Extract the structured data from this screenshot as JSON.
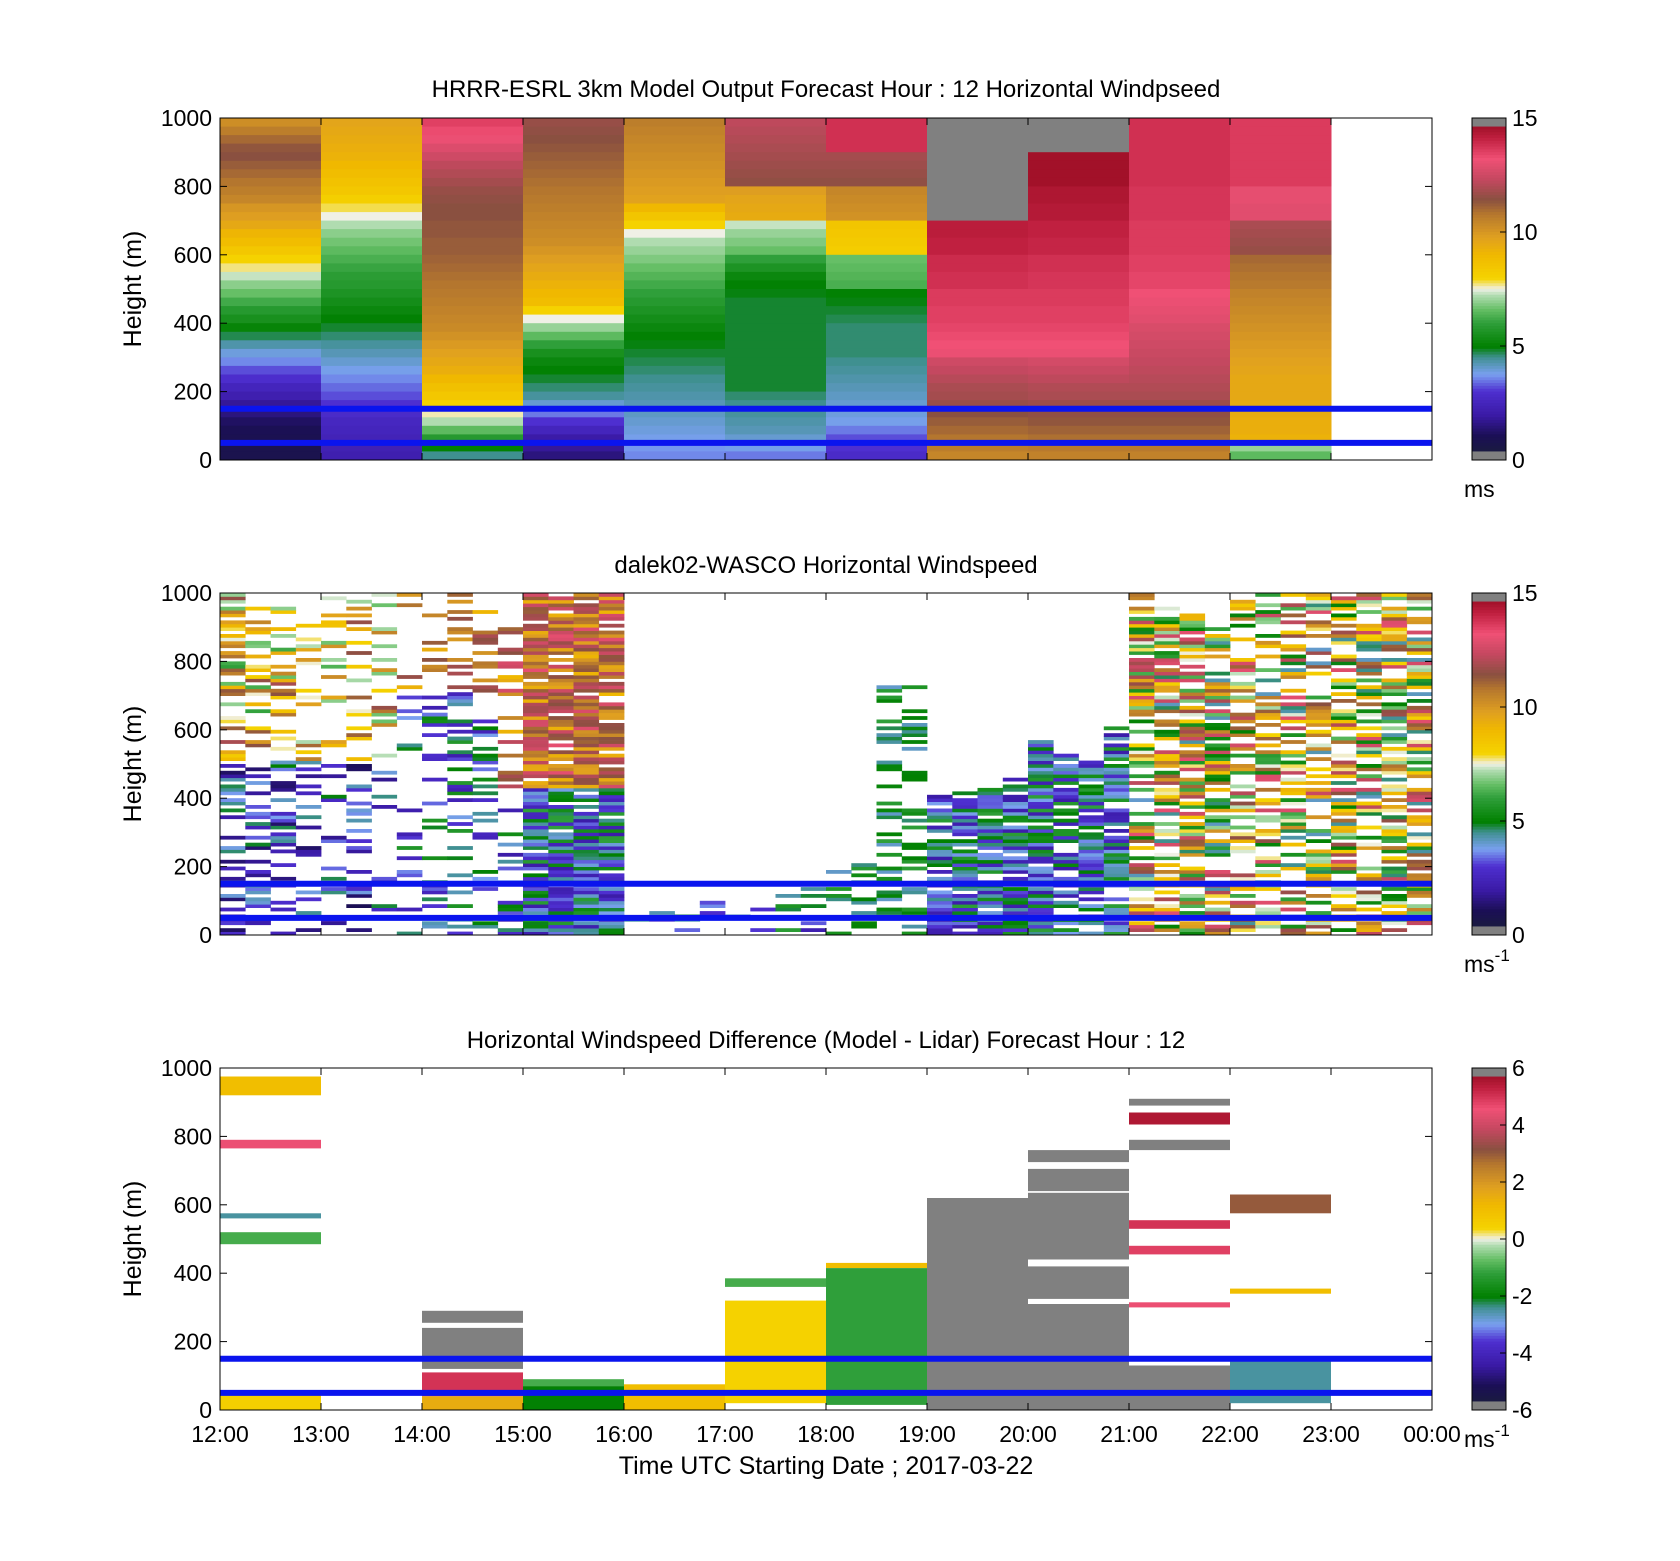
{
  "chart_data": [
    {
      "type": "heatmap",
      "title": "HRRR-ESRL 3km Model Output   Forecast Hour : 12 Horizontal Windpseed",
      "ylabel": "Height (m)",
      "xlabel": "",
      "x_ticks": [
        "",
        "",
        "",
        "",
        "",
        "",
        "",
        "",
        "",
        "",
        "",
        "",
        ""
      ],
      "y_ticks": [
        "0",
        "200",
        "400",
        "600",
        "800",
        "1000"
      ],
      "ylim": [
        0,
        1000
      ],
      "colorbar": {
        "ticks": [
          "0",
          "5",
          "10",
          "15"
        ],
        "range": [
          0,
          15
        ],
        "unit_base": "ms",
        "unit_sup": ""
      },
      "reference_lines_m": [
        50,
        150
      ],
      "cells": [
        {
          "x": 0,
          "levels": [
            10.2,
            10.6,
            11.0,
            11.3,
            11.4,
            11.2,
            11.0,
            10.8,
            10.6,
            10.4,
            10.0,
            9.8,
            9.5,
            9.1,
            8.8,
            8.4,
            8.0,
            7.7,
            7.3,
            6.9,
            6.6,
            6.2,
            5.8,
            5.5,
            5.1,
            4.7,
            4.3,
            3.9,
            3.6,
            3.2,
            2.9,
            2.5,
            2.2,
            1.8,
            1.5,
            1.2,
            1.0,
            0.9,
            0.8,
            0.8
          ]
        },
        {
          "x": 1,
          "levels": [
            9.6,
            9.5,
            9.4,
            9.3,
            9.2,
            9.0,
            8.8,
            8.6,
            8.4,
            8.1,
            7.8,
            7.5,
            7.2,
            6.9,
            6.7,
            6.5,
            6.3,
            6.1,
            5.9,
            5.8,
            5.6,
            5.4,
            5.2,
            5.0,
            4.8,
            4.6,
            4.4,
            4.2,
            4.0,
            3.8,
            3.6,
            3.4,
            3.2,
            3.0,
            2.8,
            2.6,
            2.5,
            2.4,
            2.3,
            2.2
          ]
        },
        {
          "x": 2,
          "levels": [
            13.5,
            13.3,
            13.1,
            12.8,
            12.5,
            12.2,
            12.0,
            11.8,
            11.6,
            11.5,
            11.4,
            11.4,
            11.3,
            11.3,
            11.2,
            11.2,
            11.1,
            11.0,
            10.9,
            10.8,
            10.7,
            10.6,
            10.5,
            10.4,
            10.3,
            10.1,
            9.9,
            9.7,
            9.5,
            9.3,
            9.0,
            8.7,
            8.4,
            8.0,
            7.6,
            7.2,
            6.5,
            5.8,
            5.0,
            4.5
          ]
        },
        {
          "x": 3,
          "levels": [
            11.6,
            11.5,
            11.4,
            11.3,
            11.2,
            11.1,
            11.0,
            10.9,
            10.8,
            10.7,
            10.6,
            10.5,
            10.4,
            10.3,
            10.2,
            10.0,
            9.8,
            9.6,
            9.4,
            9.2,
            9.0,
            8.8,
            8.0,
            7.5,
            7.0,
            6.5,
            6.0,
            5.5,
            5.2,
            5.0,
            4.8,
            4.6,
            4.4,
            4.0,
            3.5,
            3.0,
            2.5,
            2.0,
            1.8,
            1.5
          ]
        },
        {
          "x": 4,
          "levels": [
            10.6,
            10.5,
            10.4,
            10.3,
            10.2,
            10.1,
            10.0,
            9.9,
            9.8,
            9.7,
            9.0,
            8.5,
            8.0,
            7.5,
            7.2,
            7.0,
            6.8,
            6.6,
            6.4,
            6.2,
            6.0,
            5.8,
            5.6,
            5.4,
            5.2,
            5.0,
            4.9,
            4.8,
            4.7,
            4.6,
            4.5,
            4.4,
            4.3,
            4.2,
            4.1,
            4.0,
            3.9,
            3.8,
            3.7,
            3.6
          ]
        },
        {
          "x": 5,
          "levels": [
            12.2,
            12.1,
            12.0,
            11.9,
            11.8,
            11.7,
            11.6,
            11.5,
            9.8,
            9.6,
            9.5,
            9.4,
            7.3,
            7.0,
            6.8,
            6.6,
            6.0,
            5.6,
            5.2,
            5.0,
            4.9,
            4.8,
            4.8,
            4.8,
            4.8,
            4.8,
            4.8,
            4.8,
            4.8,
            4.8,
            4.8,
            4.8,
            4.6,
            4.5,
            4.4,
            4.3,
            4.2,
            4.0,
            3.8,
            3.5
          ]
        },
        {
          "x": 6,
          "levels": [
            13.8,
            13.8,
            13.8,
            13.8,
            11.8,
            11.7,
            11.6,
            11.5,
            10.4,
            10.3,
            10.2,
            10.1,
            8.5,
            8.4,
            8.3,
            8.2,
            6.6,
            6.5,
            6.4,
            6.3,
            5.0,
            4.9,
            4.8,
            4.7,
            4.6,
            4.6,
            4.6,
            4.6,
            4.5,
            4.4,
            4.3,
            4.2,
            4.1,
            4.0,
            3.9,
            3.8,
            3.5,
            3.2,
            3.0,
            2.8
          ]
        },
        {
          "x": 7,
          "levels": [
            15.5,
            15.5,
            15.5,
            15.5,
            15.5,
            15.5,
            15.5,
            15.5,
            14.9,
            14.9,
            14.8,
            14.8,
            14.2,
            14.2,
            14.1,
            14.1,
            13.9,
            13.9,
            13.8,
            13.8,
            13.6,
            13.6,
            13.5,
            13.5,
            13.4,
            13.3,
            13.2,
            13.1,
            12.5,
            12.3,
            12.1,
            11.9,
            11.8,
            11.6,
            11.4,
            11.2,
            11.0,
            10.8,
            10.6,
            10.4
          ]
        },
        {
          "x": 8,
          "levels": [
            15.5,
            15.5,
            15.5,
            15.5,
            14.6,
            14.6,
            14.6,
            14.6,
            14.4,
            14.4,
            14.3,
            14.3,
            14.1,
            14.1,
            14.0,
            14.0,
            13.8,
            13.8,
            13.7,
            13.7,
            13.6,
            13.6,
            13.5,
            13.5,
            13.4,
            13.3,
            13.2,
            13.1,
            12.6,
            12.4,
            12.2,
            12.0,
            11.9,
            11.7,
            11.5,
            11.3,
            11.1,
            10.9,
            10.7,
            10.5
          ]
        },
        {
          "x": 9,
          "levels": [
            13.8,
            13.8,
            13.8,
            13.8,
            13.8,
            13.8,
            13.8,
            13.8,
            13.7,
            13.7,
            13.7,
            13.7,
            13.6,
            13.6,
            13.6,
            13.6,
            13.5,
            13.5,
            13.4,
            13.4,
            13.2,
            13.1,
            13.0,
            12.9,
            12.7,
            12.6,
            12.5,
            12.4,
            12.3,
            12.2,
            12.1,
            12.0,
            11.9,
            11.7,
            11.5,
            11.3,
            11.1,
            10.9,
            10.7,
            10.5
          ]
        },
        {
          "x": 10,
          "levels": [
            13.6,
            13.6,
            13.6,
            13.6,
            13.6,
            13.6,
            13.6,
            13.6,
            13.0,
            13.0,
            12.9,
            12.9,
            11.9,
            11.8,
            11.7,
            11.6,
            11.0,
            10.9,
            10.8,
            10.7,
            10.5,
            10.4,
            10.3,
            10.2,
            10.1,
            10.0,
            9.9,
            9.8,
            9.7,
            9.6,
            9.5,
            9.5,
            9.5,
            9.4,
            9.4,
            9.3,
            9.3,
            9.2,
            7.0,
            6.5
          ]
        }
      ]
    },
    {
      "type": "heatmap",
      "title": "dalek02-WASCO  Horizontal Windspeed",
      "ylabel": "Height (m)",
      "xlabel": "",
      "x_ticks": [
        "",
        "",
        "",
        "",
        "",
        "",
        "",
        "",
        "",
        "",
        "",
        "",
        ""
      ],
      "y_ticks": [
        "0",
        "200",
        "400",
        "600",
        "800",
        "1000"
      ],
      "ylim": [
        0,
        1000
      ],
      "colorbar": {
        "ticks": [
          "0",
          "5",
          "10",
          "15"
        ],
        "range": [
          0,
          15
        ],
        "unit_base": "ms",
        "unit_sup": "-1"
      },
      "reference_lines_m": [
        50,
        150
      ],
      "cells": []
    },
    {
      "type": "heatmap",
      "title": "Horizontal Windspeed Difference (Model - Lidar) Forecast Hour : 12",
      "ylabel": "Height (m)",
      "xlabel": "Time UTC  Starting Date ; 2017-03-22",
      "x_ticks": [
        "12:00",
        "13:00",
        "14:00",
        "15:00",
        "16:00",
        "17:00",
        "18:00",
        "19:00",
        "20:00",
        "21:00",
        "22:00",
        "23:00",
        "00:00"
      ],
      "y_ticks": [
        "0",
        "200",
        "400",
        "600",
        "800",
        "1000"
      ],
      "ylim": [
        0,
        1000
      ],
      "colorbar": {
        "ticks": [
          "-6",
          "-4",
          "-2",
          "0",
          "2",
          "4",
          "6"
        ],
        "range": [
          -6,
          6
        ],
        "unit_base": "ms",
        "unit_sup": "-1"
      },
      "reference_lines_m": [
        50,
        150
      ],
      "bands": [
        {
          "x": 0,
          "h0": 920,
          "h1": 975,
          "v": 1.0
        },
        {
          "x": 0,
          "h0": 765,
          "h1": 790,
          "v": 4.5
        },
        {
          "x": 0,
          "h0": 560,
          "h1": 575,
          "v": -2.5
        },
        {
          "x": 0,
          "h0": 485,
          "h1": 520,
          "v": -1.0
        },
        {
          "x": 0,
          "h0": 0,
          "h1": 45,
          "v": 0.5
        },
        {
          "x": 2,
          "h0": 255,
          "h1": 290,
          "v": 6.0
        },
        {
          "x": 2,
          "h0": 120,
          "h1": 240,
          "v": 6.0
        },
        {
          "x": 2,
          "h0": 40,
          "h1": 110,
          "v": 5.0
        },
        {
          "x": 2,
          "h0": 0,
          "h1": 40,
          "v": 1.5
        },
        {
          "x": 3,
          "h0": 70,
          "h1": 90,
          "v": -1.0
        },
        {
          "x": 3,
          "h0": 0,
          "h1": 70,
          "v": -2.0
        },
        {
          "x": 4,
          "h0": 0,
          "h1": 75,
          "v": 1.0
        },
        {
          "x": 5,
          "h0": 360,
          "h1": 385,
          "v": -1.0
        },
        {
          "x": 5,
          "h0": 20,
          "h1": 320,
          "v": 0.4
        },
        {
          "x": 6,
          "h0": 415,
          "h1": 430,
          "v": 1.0
        },
        {
          "x": 6,
          "h0": 15,
          "h1": 415,
          "v": -1.2
        },
        {
          "x": 7,
          "h0": 0,
          "h1": 620,
          "v": 6.5
        },
        {
          "x": 8,
          "h0": 725,
          "h1": 760,
          "v": 6.5
        },
        {
          "x": 8,
          "h0": 640,
          "h1": 705,
          "v": 6.5
        },
        {
          "x": 8,
          "h0": 440,
          "h1": 635,
          "v": 6.5
        },
        {
          "x": 8,
          "h0": 325,
          "h1": 420,
          "v": 6.5
        },
        {
          "x": 8,
          "h0": 130,
          "h1": 310,
          "v": 6.5
        },
        {
          "x": 8,
          "h0": 0,
          "h1": 130,
          "v": 6.5
        },
        {
          "x": 9,
          "h0": 890,
          "h1": 910,
          "v": 6.5
        },
        {
          "x": 9,
          "h0": 835,
          "h1": 870,
          "v": 5.5
        },
        {
          "x": 9,
          "h0": 760,
          "h1": 790,
          "v": 6.5
        },
        {
          "x": 9,
          "h0": 530,
          "h1": 555,
          "v": 5.0
        },
        {
          "x": 9,
          "h0": 455,
          "h1": 480,
          "v": 4.8
        },
        {
          "x": 9,
          "h0": 300,
          "h1": 315,
          "v": 4.5
        },
        {
          "x": 9,
          "h0": 0,
          "h1": 130,
          "v": 6.5
        },
        {
          "x": 10,
          "h0": 575,
          "h1": 630,
          "v": 3.0
        },
        {
          "x": 10,
          "h0": 340,
          "h1": 355,
          "v": 1.0
        },
        {
          "x": 10,
          "h0": 20,
          "h1": 150,
          "v": -2.5
        }
      ]
    }
  ]
}
